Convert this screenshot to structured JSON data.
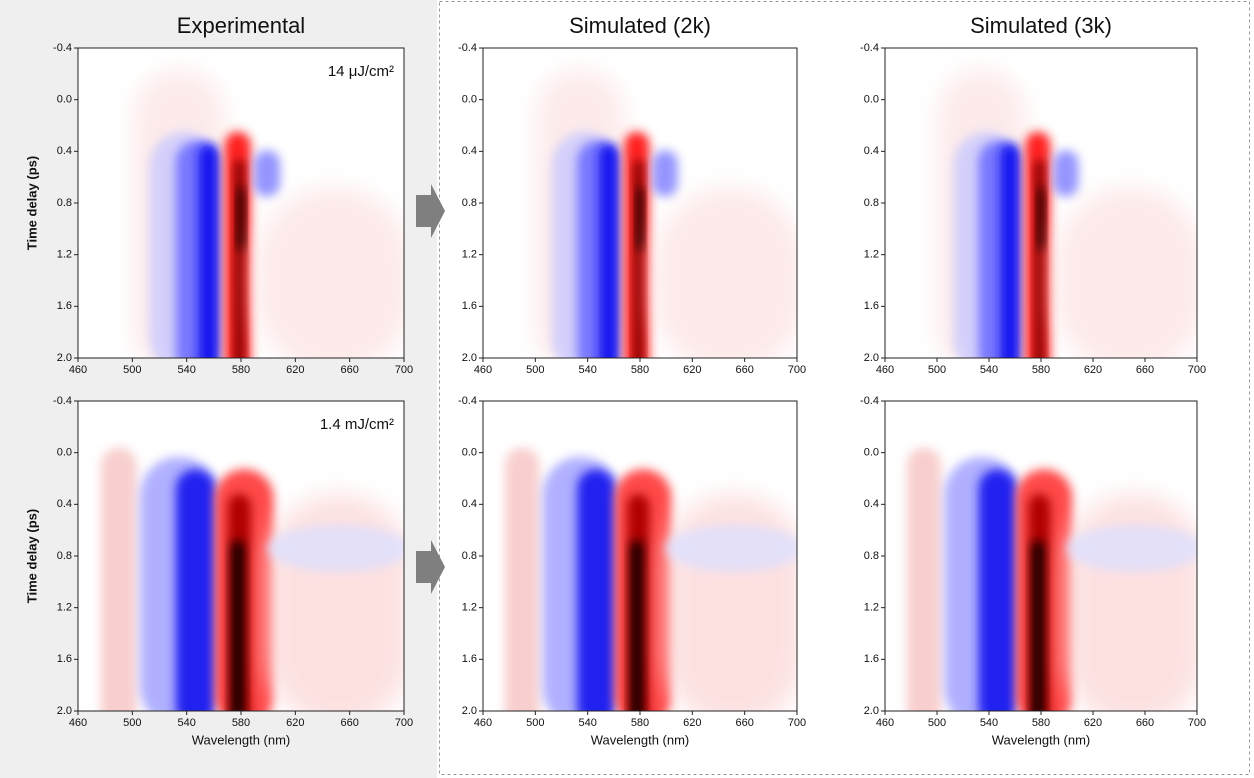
{
  "chart_data": [
    {
      "type": "heatmap",
      "title": "Experimental",
      "annotation": "14 μJ/cm²",
      "ylabel": "Time delay (ps)",
      "xlim": [
        460,
        700
      ],
      "xticks": [
        460,
        500,
        540,
        580,
        620,
        660,
        700
      ],
      "ylim": [
        -0.4,
        2
      ],
      "yticks": [
        -0.4,
        {
          "value": 0,
          "label": "0.0"
        },
        0.4,
        0.8,
        1.2,
        1.6,
        {
          "value": 2,
          "label": "2.0"
        }
      ]
    },
    {
      "type": "heatmap",
      "title": "Simulated (2k)",
      "xlim": [
        460,
        700
      ],
      "xticks": [
        460,
        500,
        540,
        580,
        620,
        660,
        700
      ],
      "ylim": [
        -0.4,
        2
      ],
      "yticks": [
        -0.4,
        {
          "value": 0,
          "label": "0.0"
        },
        0.4,
        0.8,
        1.2,
        1.6,
        {
          "value": 2,
          "label": "2.0"
        }
      ]
    },
    {
      "type": "heatmap",
      "title": "Simulated (3k)",
      "xlim": [
        460,
        700
      ],
      "xticks": [
        460,
        500,
        540,
        580,
        620,
        660,
        700
      ],
      "ylim": [
        -0.4,
        2
      ],
      "yticks": [
        -0.4,
        {
          "value": 0,
          "label": "0.0"
        },
        0.4,
        0.8,
        1.2,
        1.6,
        {
          "value": 2,
          "label": "2.0"
        }
      ]
    },
    {
      "type": "heatmap",
      "annotation": "1.4 mJ/cm²",
      "ylabel": "Time delay (ps)",
      "xlabel": "Wavelength (nm)",
      "xlim": [
        460,
        700
      ],
      "xticks": [
        460,
        500,
        540,
        580,
        620,
        660,
        700
      ],
      "ylim": [
        -0.4,
        2
      ],
      "yticks": [
        -0.4,
        {
          "value": 0,
          "label": "0.0"
        },
        0.4,
        0.8,
        1.2,
        1.6,
        {
          "value": 2,
          "label": "2.0"
        }
      ]
    },
    {
      "type": "heatmap",
      "xlabel": "Wavelength (nm)",
      "xlim": [
        460,
        700
      ],
      "xticks": [
        460,
        500,
        540,
        580,
        620,
        660,
        700
      ],
      "ylim": [
        -0.4,
        2
      ],
      "yticks": [
        -0.4,
        {
          "value": 0,
          "label": "0.0"
        },
        0.4,
        0.8,
        1.2,
        1.6,
        {
          "value": 2,
          "label": "2.0"
        }
      ]
    },
    {
      "type": "heatmap",
      "xlabel": "Wavelength (nm)",
      "xlim": [
        460,
        700
      ],
      "xticks": [
        460,
        500,
        540,
        580,
        620,
        660,
        700
      ],
      "ylim": [
        -0.4,
        2
      ],
      "yticks": [
        -0.4,
        {
          "value": 0,
          "label": "0.0"
        },
        0.4,
        0.8,
        1.2,
        1.6,
        {
          "value": 2,
          "label": "2.0"
        }
      ]
    }
  ]
}
